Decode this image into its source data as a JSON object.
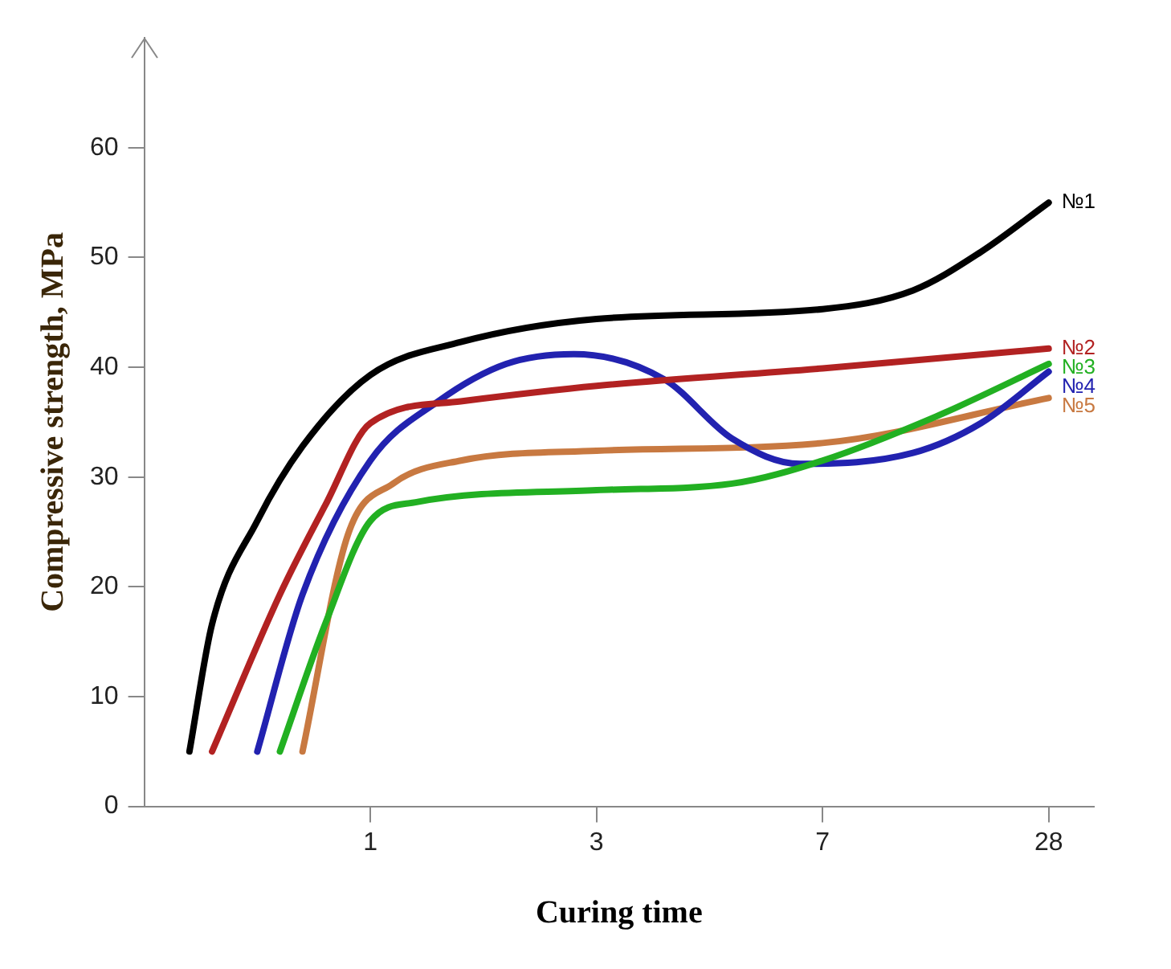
{
  "chart_data": {
    "type": "line",
    "xlabel": "Curing time",
    "ylabel": "Compressive strength, MPa",
    "categories": [
      null,
      null,
      null,
      null,
      null,
      null,
      null,
      null,
      null,
      null,
      "1",
      null,
      null,
      null,
      null,
      null,
      null,
      null,
      null,
      null,
      "3",
      null,
      null,
      null,
      null,
      null,
      null,
      null,
      null,
      null,
      "7",
      null,
      null,
      null,
      null,
      null,
      null,
      null,
      null,
      null,
      "28",
      null,
      null
    ],
    "ylim": [
      0,
      70
    ],
    "yticks": [
      0,
      10,
      20,
      30,
      40,
      50,
      60
    ],
    "grid": false,
    "legend": false,
    "marker": "none",
    "line_style": "solid",
    "series": [
      {
        "name": "№1",
        "color": "#000000",
        "values": [
          null,
          null,
          5,
          16.6,
          null,
          26,
          null,
          32.8,
          null,
          null,
          39.3,
          null,
          null,
          null,
          42.3,
          null,
          null,
          null,
          null,
          null,
          44.4,
          null,
          null,
          null,
          null,
          null,
          null,
          null,
          null,
          null,
          45.3,
          null,
          null,
          null,
          47,
          null,
          null,
          50.5,
          null,
          null,
          55,
          null,
          null
        ]
      },
      {
        "name": "№2",
        "color": "#b22222",
        "values": [
          null,
          null,
          null,
          5,
          null,
          null,
          19.3,
          null,
          27.4,
          null,
          34.9,
          null,
          null,
          null,
          36.9,
          null,
          null,
          null,
          null,
          null,
          38.3,
          null,
          null,
          null,
          null,
          null,
          null,
          null,
          null,
          null,
          39.9,
          null,
          null,
          null,
          null,
          null,
          null,
          null,
          null,
          null,
          41.7,
          null,
          null
        ]
      },
      {
        "name": "№3",
        "color": "#22b022",
        "values": [
          null,
          null,
          null,
          null,
          null,
          null,
          5,
          null,
          16.6,
          null,
          26,
          null,
          27.7,
          null,
          null,
          null,
          null,
          null,
          null,
          null,
          28.8,
          null,
          null,
          null,
          null,
          null,
          29.4,
          null,
          null,
          null,
          31.5,
          null,
          null,
          null,
          null,
          35.5,
          null,
          null,
          null,
          null,
          40.3,
          null,
          null
        ]
      },
      {
        "name": "№4",
        "color": "#2222b0",
        "values": [
          null,
          null,
          null,
          null,
          null,
          5,
          null,
          19.3,
          null,
          null,
          31.5,
          null,
          null,
          36.9,
          null,
          null,
          40.3,
          null,
          null,
          41.2,
          null,
          null,
          null,
          38.9,
          null,
          null,
          33.5,
          null,
          null,
          31.2,
          null,
          null,
          null,
          null,
          32.2,
          null,
          null,
          34.9,
          null,
          null,
          39.6,
          null,
          null
        ]
      },
      {
        "name": "№5",
        "color": "#c87941",
        "values": [
          null,
          null,
          null,
          null,
          null,
          null,
          null,
          5,
          null,
          24.7,
          null,
          29.4,
          null,
          null,
          31.5,
          null,
          null,
          null,
          null,
          null,
          32.4,
          null,
          null,
          null,
          null,
          null,
          null,
          null,
          null,
          null,
          33.1,
          null,
          null,
          null,
          null,
          null,
          null,
          null,
          null,
          null,
          37.2,
          null,
          null
        ]
      }
    ]
  }
}
